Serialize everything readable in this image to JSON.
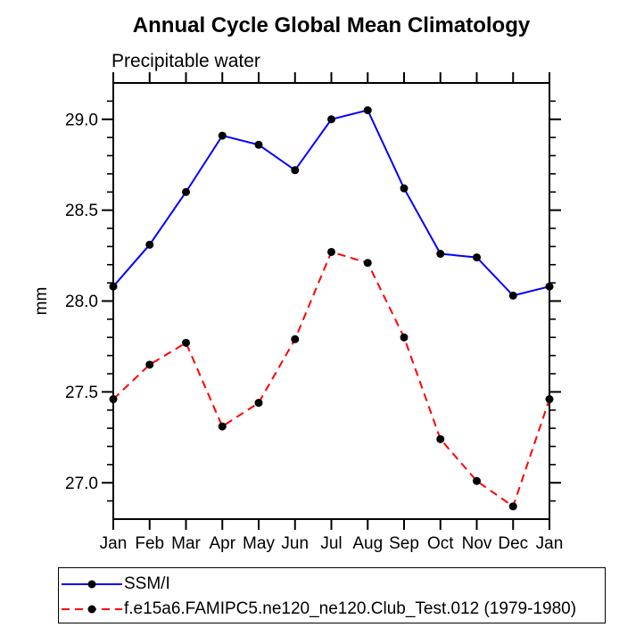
{
  "title": "Annual Cycle Global Mean Climatology",
  "subtitle": "Precipitable water",
  "colors": {
    "series1": "#0000ff",
    "series2": "#ff0000",
    "marker": "#000000",
    "axis": "#000000",
    "background": "#ffffff"
  },
  "chart_data": {
    "type": "line",
    "title": "Annual Cycle Global Mean Climatology",
    "subtitle": "Precipitable water",
    "xlabel": "",
    "ylabel": "mm",
    "categories": [
      "Jan",
      "Feb",
      "Mar",
      "Apr",
      "May",
      "Jun",
      "Jul",
      "Aug",
      "Sep",
      "Oct",
      "Nov",
      "Dec",
      "Jan"
    ],
    "ylim": [
      26.8,
      29.2
    ],
    "ytick_major": [
      27.0,
      27.5,
      28.0,
      28.5,
      29.0
    ],
    "ytick_minor_step": 0.1,
    "grid": false,
    "legend_position": "bottom-left-box",
    "series": [
      {
        "name": "SSM/I",
        "color": "#0000ff",
        "line_style": "solid",
        "marker": "filled-circle",
        "marker_color": "#000000",
        "values": [
          28.08,
          28.31,
          28.6,
          28.91,
          28.86,
          28.72,
          29.0,
          29.05,
          28.62,
          28.26,
          28.24,
          28.03,
          28.08
        ]
      },
      {
        "name": "f.e15a6.FAMIPC5.ne120_ne120.Club_Test.012 (1979-1980)",
        "color": "#ff0000",
        "line_style": "dashed",
        "marker": "filled-circle",
        "marker_color": "#000000",
        "values": [
          27.46,
          27.65,
          27.77,
          27.31,
          27.44,
          27.79,
          28.27,
          28.21,
          27.8,
          27.24,
          27.01,
          26.87,
          27.46
        ]
      }
    ]
  }
}
